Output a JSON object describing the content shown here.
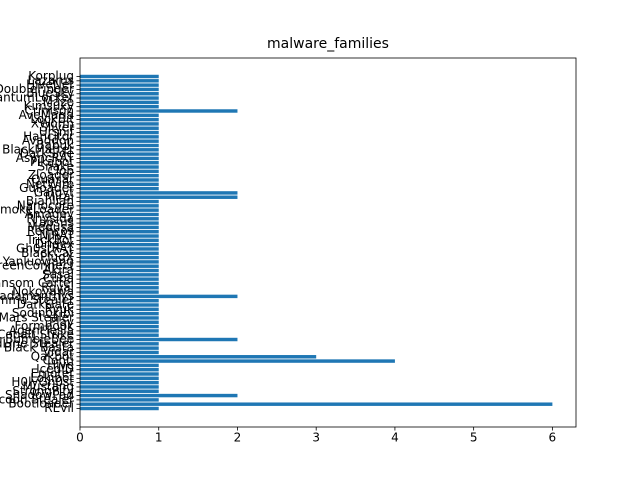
{
  "chart_data": {
    "type": "barh",
    "title": "malware_families",
    "color": "#1f77b4",
    "categories": [
      "REvil",
      "Bootloader",
      "Raccoon Stealer",
      "ShadowPad",
      "StrongPity",
      "Mustang",
      "H0lyGh0st",
      "Lokibot",
      "Emotet",
      "IcedID",
      "Hive",
      "Conti",
      "Qakbot",
      "Vidar",
      "Black Basta",
      "RedLine Stealer",
      "BumbleBee",
      "Cobalt Strike",
      "AgentTesla",
      "Formbook",
      "Play",
      "Mars Stealer",
      "Sodinokibi",
      "Ryuk",
      "DarkGate",
      "Lumma Stealer",
      "Rhadamanthys",
      "Nokoyawa",
      "Royal",
      "Ransom Cartel",
      "Cuba",
      "Sasai",
      "Akira",
      "ScreenConnect",
      "Yanluowang",
      "PlugX",
      "BlackCat",
      "Gh0stRAT",
      "Dridex",
      "TrickBot",
      "NjRAT",
      "Remcos",
      "Medusa",
      "Lapsus",
      "Rhysida",
      "Amadey",
      "SmokeLoader",
      "Nanocore",
      "Bianlian",
      "Mirai",
      "Gafgyt",
      "Guloader",
      "NetWire",
      "Quasar",
      "Zloader",
      "Clop",
      "Snake",
      "Pikabot",
      "AsyncRAT",
      "DarkSide",
      "BlackMatter",
      "Babuk",
      "Avaddon",
      "Hancitor",
      "Ursnif",
      "Sliver",
      "XWorm",
      "LockBit",
      "AveMaria",
      "Crimson",
      "Kimsuky",
      "Maze",
      "QuantumLocker",
      "BlueSky",
      "DoubleFinger",
      "HiveNet",
      "Lazarus",
      "Korplug"
    ],
    "values": [
      1,
      6,
      1,
      2,
      1,
      1,
      1,
      1,
      1,
      1,
      1,
      4,
      3,
      1,
      1,
      1,
      2,
      1,
      1,
      1,
      1,
      1,
      1,
      1,
      1,
      1,
      2,
      1,
      1,
      1,
      1,
      1,
      1,
      1,
      1,
      1,
      1,
      1,
      1,
      1,
      1,
      1,
      1,
      1,
      1,
      1,
      1,
      1,
      1,
      2,
      2,
      1,
      1,
      1,
      1,
      1,
      1,
      1,
      1,
      1,
      1,
      1,
      1,
      1,
      1,
      1,
      1,
      1,
      1,
      2,
      1,
      1,
      1,
      1,
      1,
      1,
      1,
      1
    ],
    "xlim": [
      0,
      6.3
    ],
    "xticks": [
      0,
      1,
      2,
      3,
      4,
      5,
      6
    ]
  }
}
